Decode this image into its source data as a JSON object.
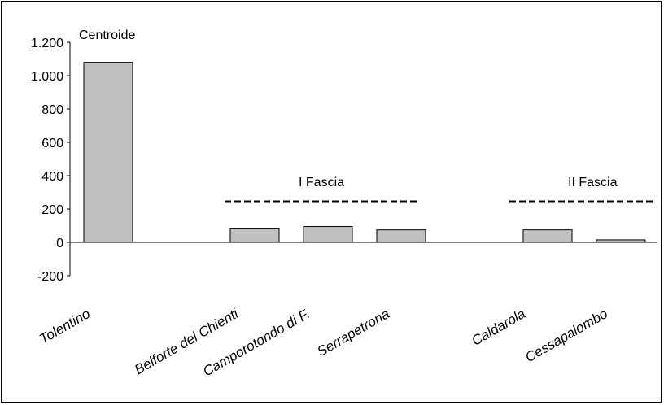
{
  "chart_data": {
    "type": "bar",
    "title": "",
    "xlabel": "",
    "ylabel": "",
    "categories": [
      "Tolentino",
      "",
      "Belforte del Chienti",
      "Camporotondo di F.",
      "Serrapetrona",
      "",
      "Caldarola",
      "Cessapalombo"
    ],
    "values": [
      1080,
      null,
      85,
      95,
      75,
      null,
      75,
      15
    ],
    "ylim": [
      -200,
      1200
    ],
    "yticks": [
      -200,
      0,
      200,
      400,
      600,
      800,
      1000,
      1200
    ],
    "ytick_labels": [
      "-200",
      "0",
      "200",
      "400",
      "600",
      "800",
      "1.000",
      "1.200"
    ],
    "bar_color": "#c0c0c0",
    "grid": false,
    "annotations": {
      "centroid": "Centroide",
      "band1": "I Fascia",
      "band2": "II Fascia"
    }
  }
}
